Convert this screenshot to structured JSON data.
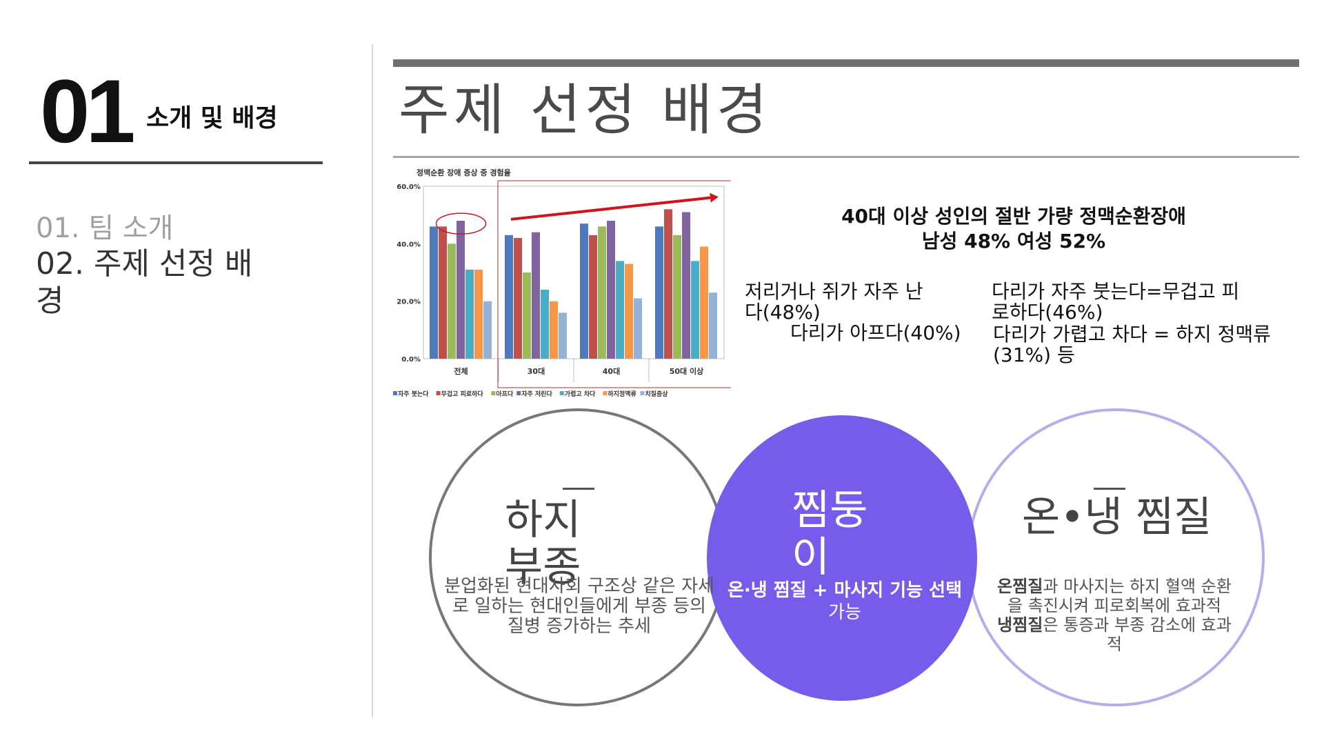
{
  "sidebar": {
    "section_number": "01",
    "section_title": "소개 및 배경",
    "items": [
      {
        "label": "01. 팀 소개"
      },
      {
        "label": "02. 주제 선정 배경"
      }
    ]
  },
  "header": {
    "title": "주제 선정 배경"
  },
  "chart_data": {
    "type": "bar",
    "title": "정맥순환 장애 증상 중 경험율",
    "categories": [
      "전체",
      "30대",
      "40대",
      "50대 이상"
    ],
    "ylim": [
      0,
      60
    ],
    "y_ticks": [
      "0.0%",
      "20.0%",
      "40.0%",
      "60.0%"
    ],
    "grid": false,
    "legend_position": "bottom",
    "series": [
      {
        "name": "자주 붓는다",
        "color": "#4f79bd",
        "values": [
          46,
          43,
          47,
          46
        ]
      },
      {
        "name": "무겁고 피로하다",
        "color": "#c0504d",
        "values": [
          46,
          42,
          43,
          52
        ]
      },
      {
        "name": "아프다",
        "color": "#9bbb59",
        "values": [
          40,
          30,
          46,
          43
        ]
      },
      {
        "name": "자주 저린다",
        "color": "#8064a2",
        "values": [
          48,
          44,
          48,
          51
        ]
      },
      {
        "name": "가렵고 차다",
        "color": "#4bacc6",
        "values": [
          31,
          24,
          34,
          34
        ]
      },
      {
        "name": "하지정맥류",
        "color": "#f79646",
        "values": [
          31,
          20,
          33,
          39
        ]
      },
      {
        "name": "치질증상",
        "color": "#95b3d7",
        "values": [
          20,
          16,
          21,
          23
        ]
      }
    ]
  },
  "info": {
    "headline_1": "40대 이상 성인의 절반 가량 정맥순환장애",
    "headline_2": "남성 48%  여성 52%",
    "symptom_1": "저리거나 쥐가 자주 난다(48%)",
    "symptom_2": "다리가 아프다(40%)",
    "symptom_3": "다리가 자주 붓는다=무겁고 피로하다(46%)",
    "symptom_4": "다리가 가렵고 차다 = 하지 정맥류(31%) 등"
  },
  "circles": {
    "left": {
      "title": "하지 부종",
      "body": "분업화된 현대사회 구조상 같은 자세로 일하는 현대인들에게 부종 등의 질병 증가하는 추세"
    },
    "center": {
      "title": "찜둥이",
      "body_bold": "온·냉 찜질 + 마사지 기능 선택",
      "body_rest": " 가능"
    },
    "right": {
      "title": "온•냉 찜질",
      "line1_bold": "온찜질",
      "line1_rest": "과 마사지는 하지 혈액 순환을 촉진시켜 피로회복에 효과적",
      "line2_bold": "냉찜질",
      "line2_rest": "은 통증과 부종 감소에 효과적"
    }
  },
  "colors": {
    "accent_purple": "#775cec",
    "light_purple": "#b7acee",
    "trend_arrow": "#d0141b"
  }
}
